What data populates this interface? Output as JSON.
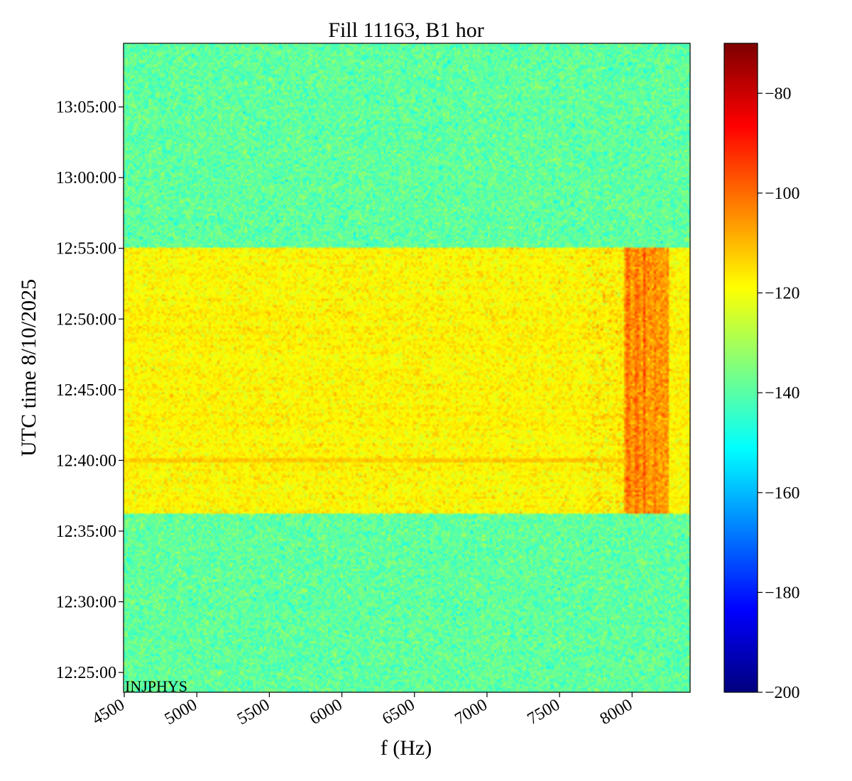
{
  "chart_data": {
    "type": "heatmap",
    "title": "Fill 11163, B1 hor",
    "xlabel": "f (Hz)",
    "ylabel": "UTC time 8/10/2025",
    "annotation": "INJPHYS",
    "xlim": [
      4495,
      8400
    ],
    "ylim_time": [
      "12:23:36",
      "13:09:30"
    ],
    "x_ticks": [
      {
        "value": 4500,
        "label": "4500"
      },
      {
        "value": 5000,
        "label": "5000"
      },
      {
        "value": 5500,
        "label": "5500"
      },
      {
        "value": 6000,
        "label": "6000"
      },
      {
        "value": 6500,
        "label": "6500"
      },
      {
        "value": 7000,
        "label": "7000"
      },
      {
        "value": 7500,
        "label": "7500"
      },
      {
        "value": 8000,
        "label": "8000"
      }
    ],
    "y_ticks": [
      {
        "value": "13:05:00",
        "label": "13:05:00"
      },
      {
        "value": "13:00:00",
        "label": "13:00:00"
      },
      {
        "value": "12:55:00",
        "label": "12:55:00"
      },
      {
        "value": "12:50:00",
        "label": "12:50:00"
      },
      {
        "value": "12:45:00",
        "label": "12:45:00"
      },
      {
        "value": "12:40:00",
        "label": "12:40:00"
      },
      {
        "value": "12:35:00",
        "label": "12:35:00"
      },
      {
        "value": "12:30:00",
        "label": "12:30:00"
      },
      {
        "value": "12:25:00",
        "label": "12:25:00"
      }
    ],
    "colorbar": {
      "colormap": "jet",
      "range": [
        -200,
        -70
      ],
      "ticks": [
        {
          "value": -80,
          "label": "−80"
        },
        {
          "value": -100,
          "label": "−100"
        },
        {
          "value": -120,
          "label": "−120"
        },
        {
          "value": -140,
          "label": "−140"
        },
        {
          "value": -160,
          "label": "−160"
        },
        {
          "value": -180,
          "label": "−180"
        },
        {
          "value": -200,
          "label": "−200"
        }
      ]
    },
    "regions": [
      {
        "t_start": "12:55:00",
        "t_end": "13:09:30",
        "level": -139,
        "note": "background"
      },
      {
        "t_start": "12:36:15",
        "t_end": "12:55:00",
        "level": -118,
        "note": "elevated"
      },
      {
        "t_start": "12:23:36",
        "t_end": "12:36:15",
        "level": -139,
        "note": "background"
      }
    ],
    "hot_band": {
      "f_start": 7950,
      "f_end": 8250,
      "t_start": "12:36:15",
      "t_end": "12:55:00",
      "level": -106
    },
    "hot_line": {
      "t": "12:40:00",
      "level": -112
    }
  }
}
